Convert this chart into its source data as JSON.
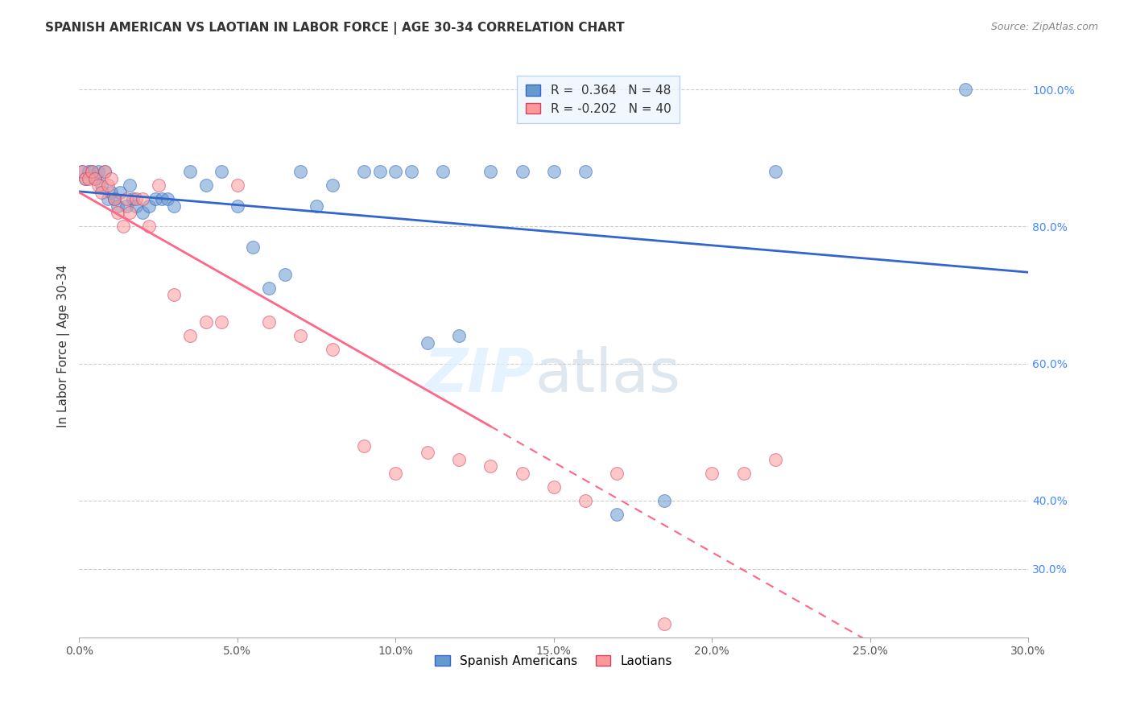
{
  "title": "SPANISH AMERICAN VS LAOTIAN IN LABOR FORCE | AGE 30-34 CORRELATION CHART",
  "source": "Source: ZipAtlas.com",
  "ylabel": "In Labor Force | Age 30-34",
  "xlim": [
    0.0,
    0.3
  ],
  "ylim": [
    0.2,
    1.05
  ],
  "xtick_labels": [
    "0.0%",
    "5.0%",
    "10.0%",
    "15.0%",
    "20.0%",
    "25.0%",
    "30.0%"
  ],
  "xtick_values": [
    0.0,
    0.05,
    0.1,
    0.15,
    0.2,
    0.25,
    0.3
  ],
  "ytick_labels": [
    "30.0%",
    "40.0%",
    "60.0%",
    "80.0%",
    "100.0%"
  ],
  "ytick_values": [
    0.3,
    0.4,
    0.6,
    0.8,
    1.0
  ],
  "blue_R": 0.364,
  "blue_N": 48,
  "pink_R": -0.202,
  "pink_N": 40,
  "blue_color": "#6699CC",
  "pink_color": "#FF9999",
  "blue_line_color": "#3366CC",
  "pink_line_color": "#FF6688",
  "blue_scatter_x": [
    0.001,
    0.002,
    0.003,
    0.004,
    0.005,
    0.006,
    0.007,
    0.008,
    0.009,
    0.01,
    0.011,
    0.012,
    0.013,
    0.015,
    0.016,
    0.017,
    0.018,
    0.02,
    0.022,
    0.024,
    0.026,
    0.028,
    0.03,
    0.035,
    0.04,
    0.045,
    0.05,
    0.055,
    0.06,
    0.065,
    0.07,
    0.075,
    0.08,
    0.09,
    0.095,
    0.1,
    0.105,
    0.11,
    0.115,
    0.12,
    0.13,
    0.14,
    0.15,
    0.16,
    0.17,
    0.185,
    0.22,
    0.28
  ],
  "blue_scatter_y": [
    0.88,
    0.87,
    0.88,
    0.88,
    0.87,
    0.88,
    0.86,
    0.88,
    0.84,
    0.85,
    0.84,
    0.83,
    0.85,
    0.83,
    0.86,
    0.84,
    0.83,
    0.82,
    0.83,
    0.84,
    0.84,
    0.84,
    0.83,
    0.88,
    0.86,
    0.88,
    0.83,
    0.77,
    0.71,
    0.73,
    0.88,
    0.83,
    0.86,
    0.88,
    0.88,
    0.88,
    0.88,
    0.63,
    0.88,
    0.64,
    0.88,
    0.88,
    0.88,
    0.88,
    0.38,
    0.4,
    0.88,
    1.0
  ],
  "pink_scatter_x": [
    0.001,
    0.002,
    0.003,
    0.004,
    0.005,
    0.006,
    0.007,
    0.008,
    0.009,
    0.01,
    0.011,
    0.012,
    0.014,
    0.015,
    0.016,
    0.018,
    0.02,
    0.022,
    0.025,
    0.03,
    0.035,
    0.04,
    0.045,
    0.05,
    0.06,
    0.07,
    0.08,
    0.09,
    0.1,
    0.11,
    0.12,
    0.13,
    0.14,
    0.15,
    0.16,
    0.17,
    0.185,
    0.2,
    0.21,
    0.22
  ],
  "pink_scatter_y": [
    0.88,
    0.87,
    0.87,
    0.88,
    0.87,
    0.86,
    0.85,
    0.88,
    0.86,
    0.87,
    0.84,
    0.82,
    0.8,
    0.84,
    0.82,
    0.84,
    0.84,
    0.8,
    0.86,
    0.7,
    0.64,
    0.66,
    0.66,
    0.86,
    0.66,
    0.64,
    0.62,
    0.48,
    0.44,
    0.47,
    0.46,
    0.45,
    0.44,
    0.42,
    0.4,
    0.44,
    0.22,
    0.44,
    0.44,
    0.46
  ]
}
